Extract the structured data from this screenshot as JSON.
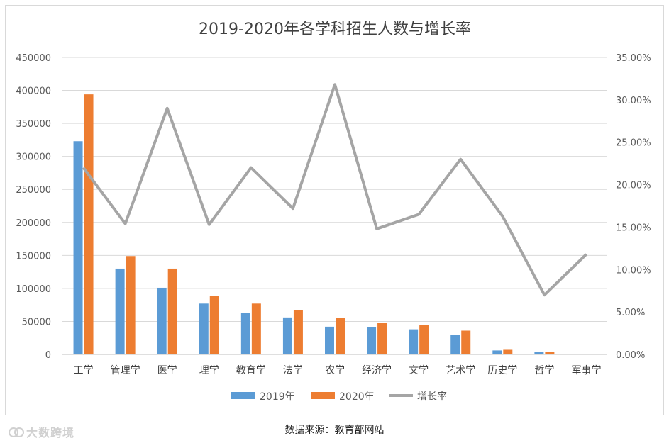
{
  "chart_data": {
    "type": "bar",
    "title": "2019-2020年各学科招生人数与增长率",
    "categories": [
      "工学",
      "管理学",
      "医学",
      "理学",
      "教育学",
      "法学",
      "农学",
      "经济学",
      "文学",
      "艺术学",
      "历史学",
      "哲学",
      "军事学"
    ],
    "series": [
      {
        "name": "2019年",
        "type": "bar",
        "axis": "left",
        "color": "#5b9bd5",
        "values": [
          323000,
          130000,
          101000,
          77000,
          63000,
          56000,
          42000,
          41000,
          38000,
          29000,
          6000,
          3200,
          0
        ]
      },
      {
        "name": "2020年",
        "type": "bar",
        "axis": "left",
        "color": "#ed7d31",
        "values": [
          394000,
          149000,
          130000,
          89000,
          77000,
          67000,
          55000,
          48000,
          45000,
          36000,
          7000,
          3800,
          0
        ]
      },
      {
        "name": "增长率",
        "type": "line",
        "axis": "right",
        "color": "#a5a5a5",
        "values": [
          0.22,
          0.154,
          0.29,
          0.153,
          0.22,
          0.172,
          0.318,
          0.148,
          0.165,
          0.23,
          0.163,
          0.07,
          0.118
        ]
      }
    ],
    "y_left": {
      "min": 0,
      "max": 450000,
      "step": 50000,
      "ticks": [
        "0",
        "50000",
        "100000",
        "150000",
        "200000",
        "250000",
        "300000",
        "350000",
        "400000",
        "450000"
      ]
    },
    "y_right": {
      "min": 0,
      "max": 0.35,
      "step": 0.05,
      "ticks": [
        "0.00%",
        "5.00%",
        "10.00%",
        "15.00%",
        "20.00%",
        "25.00%",
        "30.00%",
        "35.00%"
      ]
    },
    "grid": true,
    "legend_position": "bottom"
  },
  "source_note": "数据来源：教育部网站",
  "watermark": "大数跨境"
}
